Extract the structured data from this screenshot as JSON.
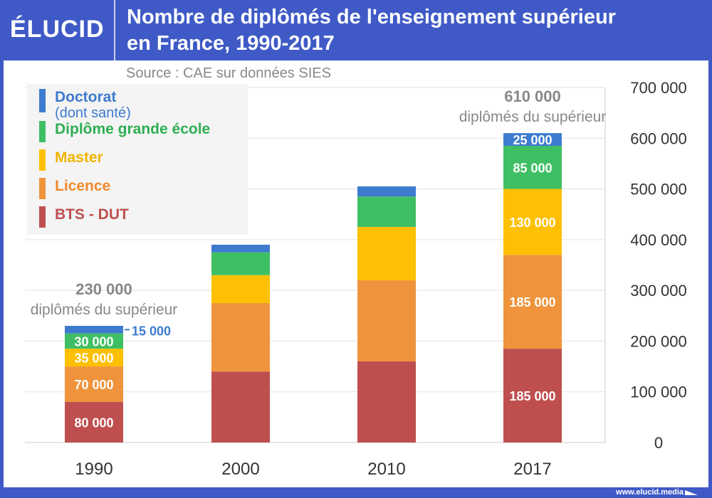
{
  "header": {
    "logo": "ÉLUCID",
    "title_line1": "Nombre de diplômés de l'enseignement supérieur",
    "title_line2": "en France, 1990-2017"
  },
  "footer": {
    "url": "www.elucid.media"
  },
  "chart_data": {
    "type": "bar",
    "stacked": true,
    "title": "Nombre de diplômés de l'enseignement supérieur en France, 1990-2017",
    "source": "Source : CAE sur données SIES",
    "categories": [
      "1990",
      "2000",
      "2010",
      "2017"
    ],
    "series": [
      {
        "name": "BTS - DUT",
        "color": "#bf4f4f",
        "values": [
          80000,
          140000,
          160000,
          185000
        ]
      },
      {
        "name": "Licence",
        "color": "#ef943c",
        "values": [
          70000,
          135000,
          160000,
          185000
        ]
      },
      {
        "name": "Master",
        "color": "#fec003",
        "values": [
          35000,
          55000,
          105000,
          130000
        ]
      },
      {
        "name": "Diplôme grande école",
        "color": "#3fbf63",
        "values": [
          30000,
          45000,
          60000,
          85000
        ]
      },
      {
        "name": "Doctorat",
        "name_line2": "(dont santé)",
        "color": "#3d7bcf",
        "values": [
          15000,
          15000,
          20000,
          25000
        ]
      }
    ],
    "data_labels": {
      "1990": [
        "80 000",
        "70 000",
        "35 000",
        "30 000",
        "15 000"
      ],
      "2017": [
        "185 000",
        "185 000",
        "130 000",
        "85 000",
        "25 000"
      ]
    },
    "annotations": [
      {
        "category": "1990",
        "line1": "230 000",
        "line2": "diplômés du supérieur"
      },
      {
        "category": "2017",
        "line1": "610 000",
        "line2": "diplômés du supérieur"
      }
    ],
    "yticks": [
      "0",
      "100 000",
      "200 000",
      "300 000",
      "400 000",
      "500 000",
      "600 000",
      "700 000"
    ],
    "ylim": [
      0,
      700000
    ],
    "grid": true,
    "y_axis_side": "right",
    "legend_placement": "top-left"
  }
}
